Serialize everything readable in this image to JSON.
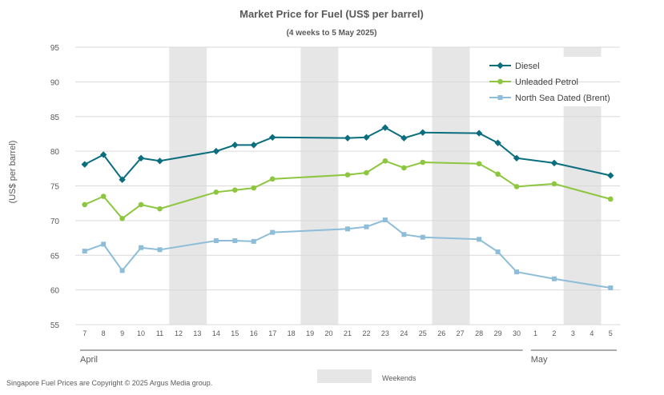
{
  "chart_data": {
    "type": "line",
    "title": "Market Price for Fuel (US$ per barrel)",
    "subtitle": "(4 weeks to 5 May 2025)",
    "xlabel": "",
    "ylabel": "(US$ per barrel)",
    "ylim": [
      55,
      95
    ],
    "yticks": [
      55,
      60,
      65,
      70,
      75,
      80,
      85,
      90,
      95
    ],
    "grid": true,
    "legend_position": "top-right",
    "categories": [
      "7",
      "8",
      "9",
      "10",
      "11",
      "12",
      "13",
      "14",
      "15",
      "16",
      "17",
      "18",
      "19",
      "20",
      "21",
      "22",
      "23",
      "24",
      "25",
      "26",
      "27",
      "28",
      "29",
      "30",
      "1",
      "2",
      "3",
      "4",
      "5"
    ],
    "month_labels": [
      {
        "label": "April",
        "from": 0,
        "to": 23
      },
      {
        "label": "May",
        "from": 24,
        "to": 28
      }
    ],
    "weekend_shading": [
      [
        5,
        6
      ],
      [
        12,
        13
      ],
      [
        19,
        20
      ],
      [
        26,
        27
      ]
    ],
    "weekend_label": "Weekends",
    "series": [
      {
        "name": "Diesel",
        "color": "#0B6E7F",
        "marker": "diamond",
        "values": [
          78.1,
          79.5,
          75.9,
          79.0,
          78.6,
          null,
          null,
          80.0,
          80.9,
          80.9,
          82.0,
          null,
          null,
          null,
          81.9,
          82.0,
          83.4,
          81.9,
          82.7,
          null,
          null,
          82.6,
          81.2,
          79.0,
          null,
          78.3,
          null,
          null,
          76.5
        ]
      },
      {
        "name": "Unleaded Petrol",
        "color": "#8DC63F",
        "marker": "circle",
        "values": [
          72.3,
          73.5,
          70.3,
          72.3,
          71.7,
          null,
          null,
          74.1,
          74.4,
          74.7,
          76.0,
          null,
          null,
          null,
          76.6,
          76.9,
          78.6,
          77.6,
          78.4,
          null,
          null,
          78.2,
          76.7,
          74.9,
          null,
          75.3,
          null,
          null,
          73.1
        ]
      },
      {
        "name": "North Sea Dated (Brent)",
        "color": "#8DBDD8",
        "marker": "square",
        "values": [
          65.6,
          66.6,
          62.8,
          66.1,
          65.8,
          null,
          null,
          67.1,
          67.1,
          67.0,
          68.3,
          null,
          null,
          null,
          68.8,
          69.1,
          70.1,
          68.0,
          67.6,
          null,
          null,
          67.3,
          65.5,
          62.6,
          null,
          61.6,
          null,
          null,
          60.3
        ]
      }
    ]
  },
  "footer": "Singapore Fuel Prices are Copyright © 2025 Argus Media group."
}
